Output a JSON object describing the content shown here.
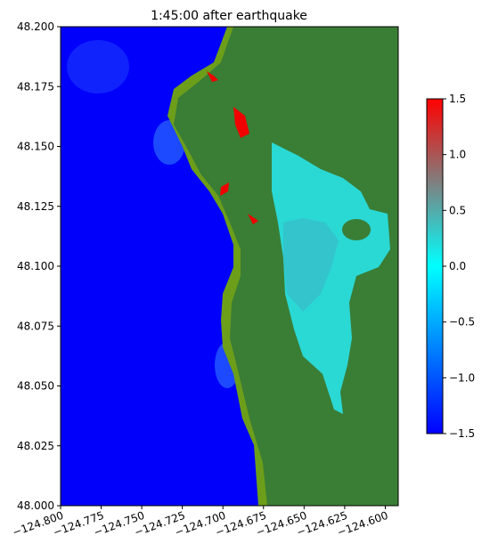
{
  "chart_data": {
    "type": "image",
    "title": "1:45:00 after earthquake",
    "xlim": [
      -124.8,
      -124.592
    ],
    "ylim": [
      48.0,
      48.2
    ],
    "xticks": [
      {
        "value": -124.8,
        "label": "−124.800"
      },
      {
        "value": -124.775,
        "label": "−124.775"
      },
      {
        "value": -124.75,
        "label": "−124.750"
      },
      {
        "value": -124.725,
        "label": "−124.725"
      },
      {
        "value": -124.7,
        "label": "−124.700"
      },
      {
        "value": -124.675,
        "label": "−124.675"
      },
      {
        "value": -124.65,
        "label": "−124.650"
      },
      {
        "value": -124.625,
        "label": "−124.625"
      },
      {
        "value": -124.6,
        "label": "−124.600"
      }
    ],
    "yticks": [
      {
        "value": 48.0,
        "label": "48.000"
      },
      {
        "value": 48.025,
        "label": "48.025"
      },
      {
        "value": 48.05,
        "label": "48.050"
      },
      {
        "value": 48.075,
        "label": "48.075"
      },
      {
        "value": 48.1,
        "label": "48.100"
      },
      {
        "value": 48.125,
        "label": "48.125"
      },
      {
        "value": 48.15,
        "label": "48.150"
      },
      {
        "value": 48.175,
        "label": "48.175"
      },
      {
        "value": 48.2,
        "label": "48.200"
      }
    ],
    "clim": [
      -1.5,
      1.5
    ],
    "cticks": [
      {
        "value": -1.5,
        "label": "−1.5"
      },
      {
        "value": -1.0,
        "label": "−1.0"
      },
      {
        "value": -0.5,
        "label": "−0.5"
      },
      {
        "value": 0.0,
        "label": "0.0"
      },
      0.5,
      {
        "value": 1.0,
        "label": "1.0"
      },
      1.5
    ],
    "colormap": [
      "#0000ff",
      "#00ffff",
      "#ff0000"
    ]
  }
}
